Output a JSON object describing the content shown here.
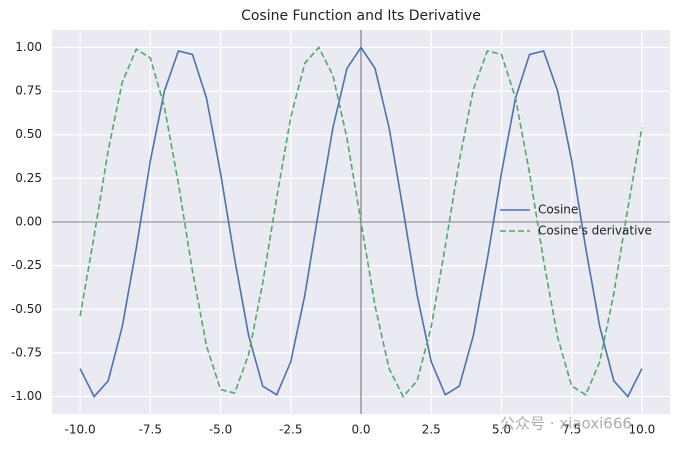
{
  "chart_data": {
    "type": "line",
    "title": "Cosine Function and Its Derivative",
    "x": [
      -10,
      -9.5,
      -9,
      -8.5,
      -8,
      -7.5,
      -7,
      -6.5,
      -6,
      -5.5,
      -5,
      -4.5,
      -4,
      -3.5,
      -3,
      -2.5,
      -2,
      -1.5,
      -1,
      -0.5,
      0,
      0.5,
      1,
      1.5,
      2,
      2.5,
      3,
      3.5,
      4,
      4.5,
      5,
      5.5,
      6,
      6.5,
      7,
      7.5,
      8,
      8.5,
      9,
      9.5,
      10
    ],
    "series": [
      {
        "name": "Cosine",
        "color": "#4c72b0",
        "dash": "solid",
        "values": [
          -0.84,
          -1.0,
          -0.91,
          -0.6,
          -0.15,
          0.35,
          0.75,
          0.98,
          0.96,
          0.71,
          0.28,
          -0.21,
          -0.65,
          -0.94,
          -0.99,
          -0.8,
          -0.42,
          0.07,
          0.54,
          0.88,
          1,
          0.88,
          0.54,
          0.07,
          -0.42,
          -0.8,
          -0.99,
          -0.94,
          -0.65,
          -0.21,
          0.28,
          0.71,
          0.96,
          0.98,
          0.75,
          0.35,
          -0.15,
          -0.6,
          -0.91,
          -1.0,
          -0.84
        ]
      },
      {
        "name": "Cosine's derivative",
        "color": "#55a868",
        "dash": "dashed",
        "values": [
          -0.54,
          -0.08,
          0.41,
          0.8,
          0.99,
          0.94,
          0.66,
          0.22,
          -0.28,
          -0.71,
          -0.96,
          -0.98,
          -0.76,
          -0.35,
          0.14,
          0.6,
          0.91,
          1.0,
          0.84,
          0.48,
          0,
          -0.48,
          -0.84,
          -1.0,
          -0.91,
          -0.6,
          -0.14,
          0.35,
          0.76,
          0.98,
          0.96,
          0.71,
          0.28,
          -0.22,
          -0.66,
          -0.94,
          -0.99,
          -0.8,
          -0.41,
          0.08,
          0.54
        ]
      }
    ],
    "xlim": [
      -11,
      11
    ],
    "ylim": [
      -1.1,
      1.1
    ],
    "xticks": [
      {
        "value": -10,
        "label": "-10.0"
      },
      {
        "value": -7.5,
        "label": "-7.5"
      },
      {
        "value": -5,
        "label": "-5.0"
      },
      {
        "value": -2.5,
        "label": "-2.5"
      },
      {
        "value": 0,
        "label": "0.0"
      },
      {
        "value": 2.5,
        "label": "2.5"
      },
      {
        "value": 5,
        "label": "5.0"
      },
      {
        "value": 7.5,
        "label": "7.5"
      },
      {
        "value": 10,
        "label": "10.0"
      }
    ],
    "yticks": [
      {
        "value": -1,
        "label": "-1.00"
      },
      {
        "value": -0.75,
        "label": "-0.75"
      },
      {
        "value": -0.5,
        "label": "-0.50"
      },
      {
        "value": -0.25,
        "label": "-0.25"
      },
      {
        "value": 0,
        "label": "0.00"
      },
      {
        "value": 0.25,
        "label": "0.25"
      },
      {
        "value": 0.5,
        "label": "0.50"
      },
      {
        "value": 0.75,
        "label": "0.75"
      },
      {
        "value": 1,
        "label": "1.00"
      }
    ],
    "hlines": [
      0
    ],
    "vlines": [
      0
    ],
    "grid": true,
    "legend": "center right",
    "watermark": "公众号 · xiaoxi666"
  }
}
